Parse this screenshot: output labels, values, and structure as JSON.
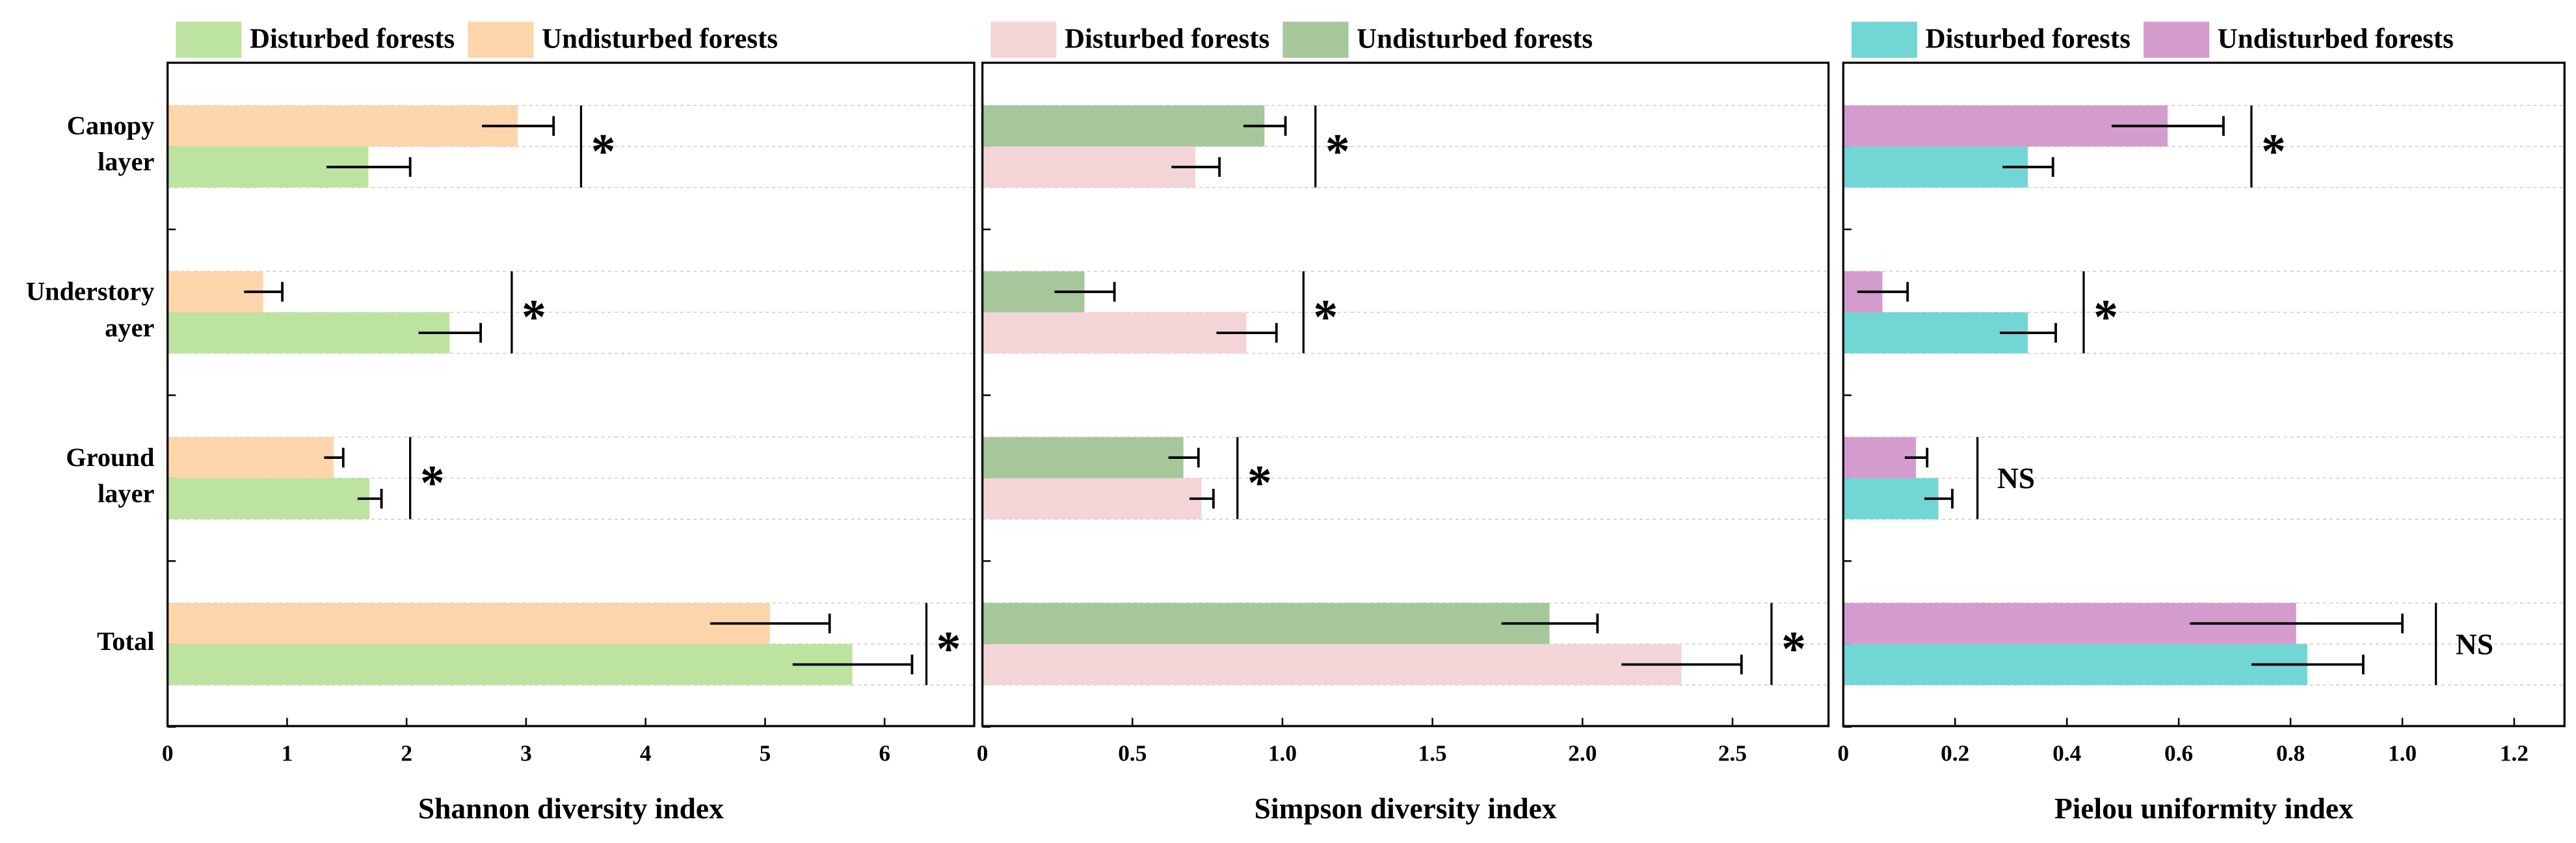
{
  "chart_data": [
    {
      "type": "bar",
      "orientation": "horizontal",
      "xlabel": "Shannon diversity index",
      "categories": [
        "Canopy layer",
        "Understory ayer",
        "Ground layer",
        "Total"
      ],
      "series": [
        {
          "name": "Disturbed forests",
          "color": "#bde3a0",
          "values": [
            1.68,
            2.36,
            1.69,
            5.73
          ],
          "errors": [
            0.35,
            0.26,
            0.1,
            0.5
          ]
        },
        {
          "name": "Undisturbed forests",
          "color": "#fdd5aa",
          "values": [
            2.93,
            0.8,
            1.39,
            5.04
          ],
          "errors": [
            0.3,
            0.16,
            0.08,
            0.5
          ]
        }
      ],
      "significance": [
        {
          "label": "*",
          "x": 3.46
        },
        {
          "label": "*",
          "x": 2.88
        },
        {
          "label": "*",
          "x": 2.03
        },
        {
          "label": "*",
          "x": 6.35
        }
      ],
      "xlim": [
        0,
        6.75
      ],
      "xticks": [
        0,
        1,
        2,
        3,
        4,
        5,
        6
      ],
      "grid": true
    },
    {
      "type": "bar",
      "orientation": "horizontal",
      "xlabel": "Simpson diversity index",
      "series": [
        {
          "name": "Disturbed forests",
          "color": "#f4d5d7",
          "values": [
            0.71,
            0.88,
            0.73,
            2.33
          ],
          "errors": [
            0.08,
            0.1,
            0.04,
            0.2
          ]
        },
        {
          "name": "Undisturbed forests",
          "color": "#a5c79a",
          "values": [
            0.94,
            0.34,
            0.67,
            1.89
          ],
          "errors": [
            0.07,
            0.1,
            0.05,
            0.16
          ]
        }
      ],
      "significance": [
        {
          "label": "*",
          "x": 1.11
        },
        {
          "label": "*",
          "x": 1.07
        },
        {
          "label": "*",
          "x": 0.85
        },
        {
          "label": "*",
          "x": 2.63
        }
      ],
      "xlim": [
        0,
        2.82
      ],
      "xticks": [
        0,
        0.5,
        {
          "value": 1,
          "label": "1.0"
        },
        1.5,
        {
          "value": 2,
          "label": "2.0"
        },
        2.5
      ],
      "grid": true
    },
    {
      "type": "bar",
      "orientation": "horizontal",
      "xlabel": "Pielou uniformity index",
      "series": [
        {
          "name": "Disturbed forests",
          "color": "#71d6d4",
          "values": [
            0.33,
            0.33,
            0.17,
            0.83
          ],
          "errors": [
            0.045,
            0.05,
            0.025,
            0.1
          ]
        },
        {
          "name": "Undisturbed forests",
          "color": "#d39ccd",
          "values": [
            0.58,
            0.07,
            0.13,
            0.81
          ],
          "errors": [
            0.1,
            0.045,
            0.02,
            0.19
          ]
        }
      ],
      "significance": [
        {
          "label": "*",
          "x": 0.73
        },
        {
          "label": "*",
          "x": 0.43
        },
        {
          "label": "NS",
          "x": 0.24
        },
        {
          "label": "NS",
          "x": 1.06
        }
      ],
      "xlim": [
        0,
        1.29
      ],
      "xticks": [
        0,
        0.2,
        0.4,
        0.6,
        0.8,
        {
          "value": 1,
          "label": "1.0"
        },
        1.2
      ],
      "grid": true
    }
  ]
}
